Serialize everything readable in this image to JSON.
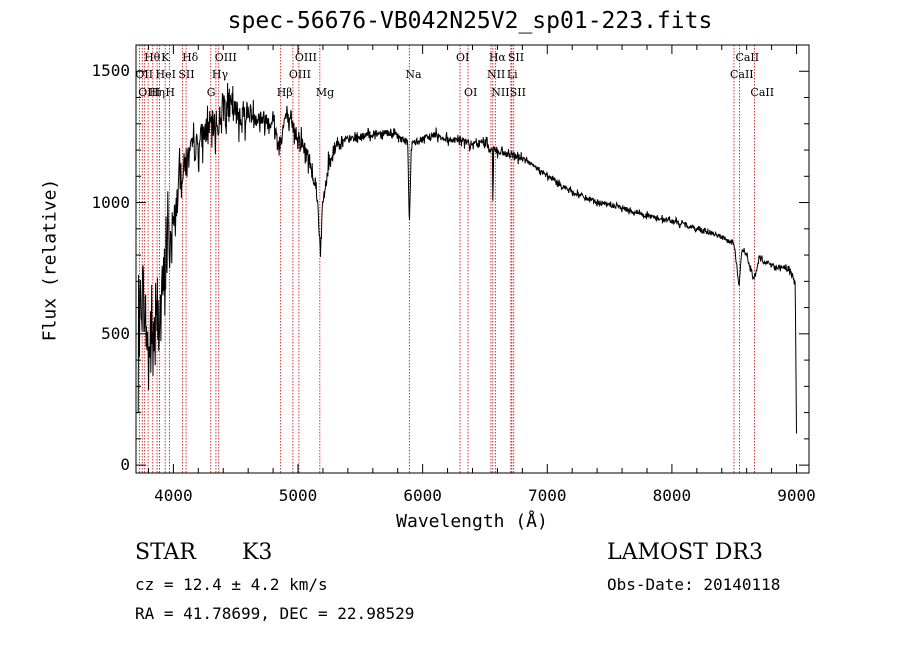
{
  "chart_data": {
    "type": "line",
    "title": "spec-56676-VB042N25V2_sp01-223.fits",
    "xlabel": "Wavelength (Å)",
    "ylabel": "Flux (relative)",
    "xlim": [
      3700,
      9100
    ],
    "ylim": [
      -30,
      1600
    ],
    "x_ticks": [
      4000,
      5000,
      6000,
      7000,
      8000,
      9000
    ],
    "x_tick_labels": [
      "4000",
      "5000",
      "6000",
      "7000",
      "8000",
      "9000"
    ],
    "y_ticks": [
      0,
      500,
      1000,
      1500
    ],
    "y_tick_labels": [
      "0",
      "500",
      "1000",
      "1500"
    ],
    "grid": false,
    "series": [
      {
        "name": "flux",
        "x": [
          3700,
          3750,
          3800,
          3850,
          3900,
          3950,
          4000,
          4050,
          4100,
          4150,
          4200,
          4250,
          4300,
          4350,
          4400,
          4500,
          4600,
          4700,
          4800,
          4850,
          4900,
          4950,
          5000,
          5100,
          5150,
          5180,
          5200,
          5250,
          5300,
          5400,
          5500,
          5600,
          5700,
          5800,
          5880,
          5893,
          5910,
          6000,
          6100,
          6200,
          6300,
          6400,
          6500,
          6560,
          6563,
          6570,
          6600,
          6700,
          6800,
          7000,
          7200,
          7400,
          7600,
          7800,
          8000,
          8200,
          8400,
          8500,
          8540,
          8560,
          8600,
          8660,
          8700,
          8800,
          8900,
          8950,
          8990,
          9000
        ],
        "values": [
          300,
          700,
          420,
          500,
          600,
          820,
          900,
          1100,
          1150,
          1200,
          1220,
          1270,
          1300,
          1280,
          1380,
          1340,
          1340,
          1320,
          1310,
          1210,
          1330,
          1280,
          1260,
          1150,
          1050,
          820,
          1000,
          1150,
          1220,
          1240,
          1250,
          1260,
          1270,
          1250,
          1230,
          920,
          1220,
          1240,
          1260,
          1240,
          1240,
          1220,
          1230,
          1200,
          1000,
          1210,
          1190,
          1180,
          1170,
          1100,
          1040,
          1000,
          980,
          950,
          930,
          900,
          870,
          840,
          680,
          820,
          800,
          700,
          790,
          760,
          750,
          740,
          690,
          120
        ]
      }
    ],
    "line_wavelengths": [
      3727,
      3750,
      3770,
      3797,
      3835,
      3869,
      3889,
      3934,
      3968,
      4072,
      4102,
      4300,
      4341,
      4364,
      4861,
      4959,
      5007,
      5175,
      5893,
      6300,
      6364,
      6548,
      6563,
      6583,
      6708,
      6716,
      6731,
      8498,
      8542,
      8662
    ],
    "line_labels": [
      {
        "text": "Hθ",
        "wl": 3797,
        "row": 0
      },
      {
        "text": "K",
        "wl": 3934,
        "row": 0
      },
      {
        "text": "Hδ",
        "wl": 4102,
        "row": 0
      },
      {
        "text": "OIII",
        "wl": 4364,
        "row": 0
      },
      {
        "text": "OIII",
        "wl": 5007,
        "row": 0
      },
      {
        "text": "OI",
        "wl": 6300,
        "row": 0
      },
      {
        "text": "Hα",
        "wl": 6563,
        "row": 0
      },
      {
        "text": "SII",
        "wl": 6716,
        "row": 0
      },
      {
        "text": "CaII",
        "wl": 8542,
        "row": 0
      },
      {
        "text": "OII",
        "wl": 3727,
        "row": 1
      },
      {
        "text": "HeI",
        "wl": 3889,
        "row": 1
      },
      {
        "text": "SII",
        "wl": 4072,
        "row": 1
      },
      {
        "text": "Hγ",
        "wl": 4341,
        "row": 1
      },
      {
        "text": "OIII",
        "wl": 4959,
        "row": 1
      },
      {
        "text": "Na",
        "wl": 5893,
        "row": 1
      },
      {
        "text": "NII",
        "wl": 6548,
        "row": 1
      },
      {
        "text": "Li",
        "wl": 6708,
        "row": 1
      },
      {
        "text": "CaII",
        "wl": 8498,
        "row": 1
      },
      {
        "text": "OIII",
        "wl": 3750,
        "row": 2
      },
      {
        "text": "Hη",
        "wl": 3835,
        "row": 2
      },
      {
        "text": "H",
        "wl": 3968,
        "row": 2
      },
      {
        "text": "G",
        "wl": 4300,
        "row": 2
      },
      {
        "text": "Hβ",
        "wl": 4861,
        "row": 2
      },
      {
        "text": "Mg",
        "wl": 5175,
        "row": 2
      },
      {
        "text": "OI",
        "wl": 6364,
        "row": 2
      },
      {
        "text": "NII",
        "wl": 6583,
        "row": 2
      },
      {
        "text": "SII",
        "wl": 6731,
        "row": 2
      },
      {
        "text": "CaII",
        "wl": 8662,
        "row": 2
      }
    ],
    "colors": {
      "spectrum": "#000000",
      "lines": "#cc0000",
      "axes": "#000000"
    }
  },
  "info": {
    "object_class": "STAR",
    "subclass": "K3",
    "survey": "LAMOST DR3",
    "cz": "cz = 12.4 ± 4.2 km/s",
    "obs_date": "Obs-Date: 20140118",
    "coords": "RA =  41.78699, DEC =  22.98529"
  }
}
